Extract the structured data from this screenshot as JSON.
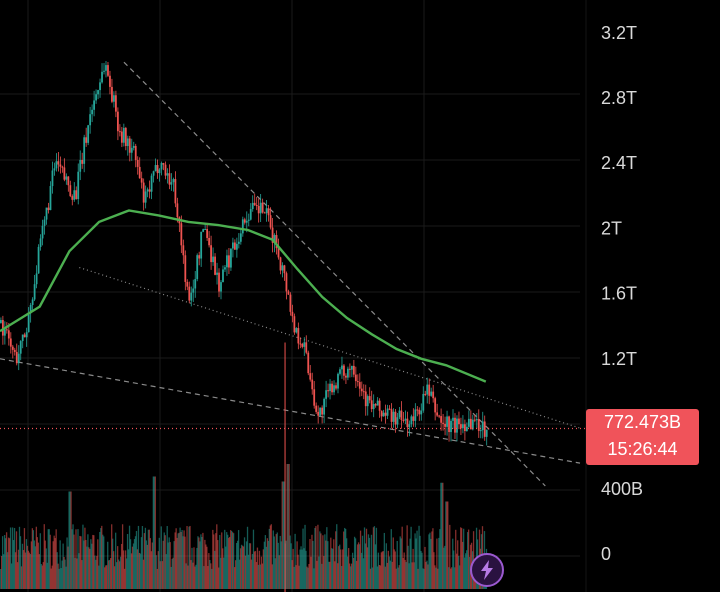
{
  "colors": {
    "background": "#000000",
    "grid": "#1a1a1a",
    "up": "#26a69a",
    "down": "#ef5350",
    "ma": "#4caf50",
    "trendline": "#8a8a8a",
    "badge": "#f0535a",
    "bolt_button": "#9b59d0"
  },
  "price_badge": {
    "value": "772.473B",
    "countdown": "15:26:44"
  },
  "bolt_button": {
    "icon": "lightning-bolt-icon"
  },
  "chart_data": {
    "type": "candlestick",
    "price_axis": {
      "ticks": [
        "3.2T",
        "2.8T",
        "2.4T",
        "2T",
        "1.6T",
        "1.2T",
        "400B"
      ],
      "tick_values": [
        3200,
        2800,
        2400,
        2000,
        1600,
        1200,
        400
      ],
      "unit": "B",
      "range": [
        360,
        3340
      ]
    },
    "volume_axis": {
      "ticks": [
        "0"
      ]
    },
    "current_price": 772.473,
    "price_path_points": [
      [
        0,
        1420
      ],
      [
        3,
        1200
      ],
      [
        5,
        1360
      ],
      [
        8,
        1900
      ],
      [
        11,
        2400
      ],
      [
        15,
        2200
      ],
      [
        18,
        2700
      ],
      [
        21,
        3020
      ],
      [
        24,
        2600
      ],
      [
        27,
        2450
      ],
      [
        29,
        2150
      ],
      [
        32,
        2420
      ],
      [
        35,
        2250
      ],
      [
        38,
        1520
      ],
      [
        41,
        2030
      ],
      [
        44,
        1650
      ],
      [
        47,
        1900
      ],
      [
        50,
        2100
      ],
      [
        53,
        2120
      ],
      [
        56,
        1850
      ],
      [
        58,
        1600
      ],
      [
        59,
        1400
      ],
      [
        61,
        1300
      ],
      [
        64,
        840
      ],
      [
        67,
        1050
      ],
      [
        71,
        1170
      ],
      [
        74,
        930
      ],
      [
        77,
        870
      ],
      [
        80,
        830
      ],
      [
        83,
        810
      ],
      [
        86,
        1000
      ],
      [
        89,
        800
      ],
      [
        92,
        790
      ],
      [
        95,
        825
      ],
      [
        98,
        770
      ]
    ],
    "moving_average_points": [
      [
        0,
        1370
      ],
      [
        8,
        1520
      ],
      [
        14,
        1860
      ],
      [
        20,
        2040
      ],
      [
        26,
        2110
      ],
      [
        32,
        2080
      ],
      [
        38,
        2040
      ],
      [
        44,
        2020
      ],
      [
        50,
        1990
      ],
      [
        55,
        1930
      ],
      [
        60,
        1750
      ],
      [
        65,
        1580
      ],
      [
        70,
        1450
      ],
      [
        75,
        1350
      ],
      [
        80,
        1260
      ],
      [
        85,
        1200
      ],
      [
        90,
        1160
      ],
      [
        98,
        1060
      ]
    ],
    "trendlines": [
      {
        "name": "upper-dashed",
        "points": [
          [
            25,
            3020
          ],
          [
            110,
            420
          ]
        ],
        "style": "dashed"
      },
      {
        "name": "upper-dotted",
        "points": [
          [
            16,
            1760
          ],
          [
            117,
            775
          ]
        ],
        "style": "dotted"
      },
      {
        "name": "lower-dashed",
        "points": [
          [
            0,
            1200
          ],
          [
            117,
            560
          ]
        ],
        "style": "dashed"
      }
    ],
    "volume_spikes": [
      {
        "x": 14,
        "v": 0.78
      },
      {
        "x": 31,
        "v": 0.9
      },
      {
        "x": 57,
        "v": 0.86
      },
      {
        "x": 58,
        "v": 1.0
      },
      {
        "x": 89,
        "v": 0.85
      },
      {
        "x": 90,
        "v": 0.7
      }
    ]
  }
}
